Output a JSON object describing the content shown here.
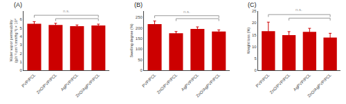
{
  "chart_data": [
    {
      "type": "bar",
      "title": "(A)",
      "ylabel": "Water vapor permeability\n(g.h⁻¹.cm⁻².mmHg⁻¹) × 10⁴",
      "categories": [
        "PVP/PCL",
        "ZnO/PVP/PCL",
        "AgPVP/PCL",
        "ZnO/AgPVP/PCL"
      ],
      "values": [
        5.5,
        5.35,
        5.2,
        5.3
      ],
      "errors": [
        0.25,
        0.2,
        0.15,
        0.15
      ],
      "color": "#cc0000",
      "ylim": [
        0,
        7
      ],
      "yticks": [
        0,
        1,
        2,
        3,
        4,
        5,
        6
      ],
      "grid": false,
      "brackets": [
        {
          "from": "ZnO/PVP/PCL",
          "to": "ZnO/AgPVP/PCL",
          "y": 6.1
        },
        {
          "from": "PVP/PCL",
          "to": "ZnO/AgPVP/PCL",
          "y": 6.5,
          "label": "n.s.",
          "label_y": 6.6
        }
      ]
    },
    {
      "type": "bar",
      "title": "(B)",
      "ylabel": "Swelling degree (%)",
      "categories": [
        "PVP/PCL",
        "ZnO/PVP/PCL",
        "AgPVP/PCL",
        "ZnO/AgPVP/PCL"
      ],
      "values": [
        218,
        175,
        195,
        183
      ],
      "errors": [
        15,
        8,
        10,
        8
      ],
      "color": "#cc0000",
      "ylim": [
        0,
        280
      ],
      "yticks": [
        0,
        50,
        100,
        150,
        200,
        250
      ],
      "grid": false,
      "brackets": [
        {
          "from": "ZnO/PVP/PCL",
          "to": "ZnO/AgPVP/PCL",
          "y": 244
        },
        {
          "from": "PVP/PCL",
          "to": "ZnO/AgPVP/PCL",
          "y": 258,
          "label": "n.s.",
          "label_y": 262
        }
      ]
    },
    {
      "type": "bar",
      "title": "(C)",
      "ylabel": "Weight loss (%)",
      "categories": [
        "PVP/PCL",
        "ZnO/PVP/PCL",
        "AgPVP/PCL",
        "ZnO/AgPVP/PCL"
      ],
      "values": [
        16.5,
        14.8,
        16.2,
        13.8
      ],
      "errors": [
        3.8,
        1.5,
        1.5,
        1.8
      ],
      "color": "#cc0000",
      "ylim": [
        0,
        25
      ],
      "yticks": [
        0,
        5,
        10,
        15,
        20,
        25
      ],
      "grid": false,
      "brackets": [
        {
          "from": "ZnO/PVP/PCL",
          "to": "ZnO/AgPVP/PCL",
          "y": 22
        },
        {
          "from": "PVP/PCL",
          "to": "ZnO/AgPVP/PCL",
          "y": 23.5,
          "label": "n.s.",
          "label_y": 24.0
        }
      ]
    }
  ]
}
